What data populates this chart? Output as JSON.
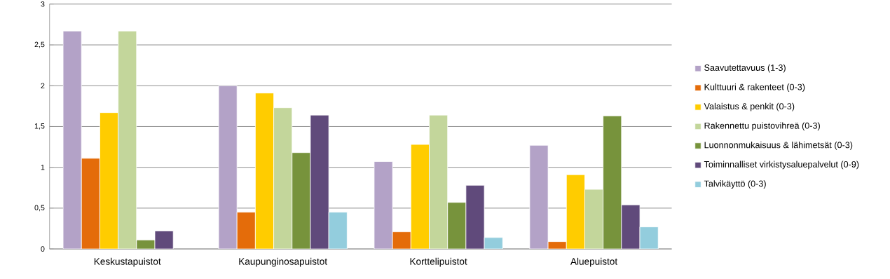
{
  "chart_data": {
    "type": "bar",
    "categories": [
      "Keskustapuistot",
      "Kaupunginosapuistot",
      "Korttelipuistot",
      "Aluepuistot"
    ],
    "series": [
      {
        "name": "Saavutettavuus (1-3)",
        "color": "#b3a2c7",
        "values": [
          2.67,
          2.0,
          1.07,
          1.27
        ]
      },
      {
        "name": "Kulttuuri & rakenteet (0-3)",
        "color": "#e46c0a",
        "values": [
          1.11,
          0.45,
          0.21,
          0.09
        ]
      },
      {
        "name": "Valaistus & penkit (0-3)",
        "color": "#ffcc00",
        "values": [
          1.67,
          1.91,
          1.28,
          0.91
        ]
      },
      {
        "name": "Rakennettu puistovihreä (0-3)",
        "color": "#c3d69b",
        "values": [
          2.67,
          1.73,
          1.64,
          0.73
        ]
      },
      {
        "name": "Luonnonmukaisuus & lähimetsät (0-3)",
        "color": "#77933c",
        "values": [
          0.11,
          1.18,
          0.57,
          1.63
        ]
      },
      {
        "name": "Toiminnalliset virkistysaluepalvelut (0-9)",
        "color": "#604a7b",
        "values": [
          0.22,
          1.64,
          0.78,
          0.54
        ]
      },
      {
        "name": "Talvikäyttö (0-3)",
        "color": "#93cddd",
        "values": [
          null,
          0.45,
          0.14,
          0.27
        ]
      }
    ],
    "ylim": [
      0,
      3
    ],
    "yticks": [
      0,
      {
        "value": 0.5,
        "label": "0,5"
      },
      1,
      {
        "value": 1.5,
        "label": "1,5"
      },
      2,
      {
        "value": 2.5,
        "label": "2,5"
      },
      3
    ],
    "grid": "y",
    "legend": "right"
  }
}
